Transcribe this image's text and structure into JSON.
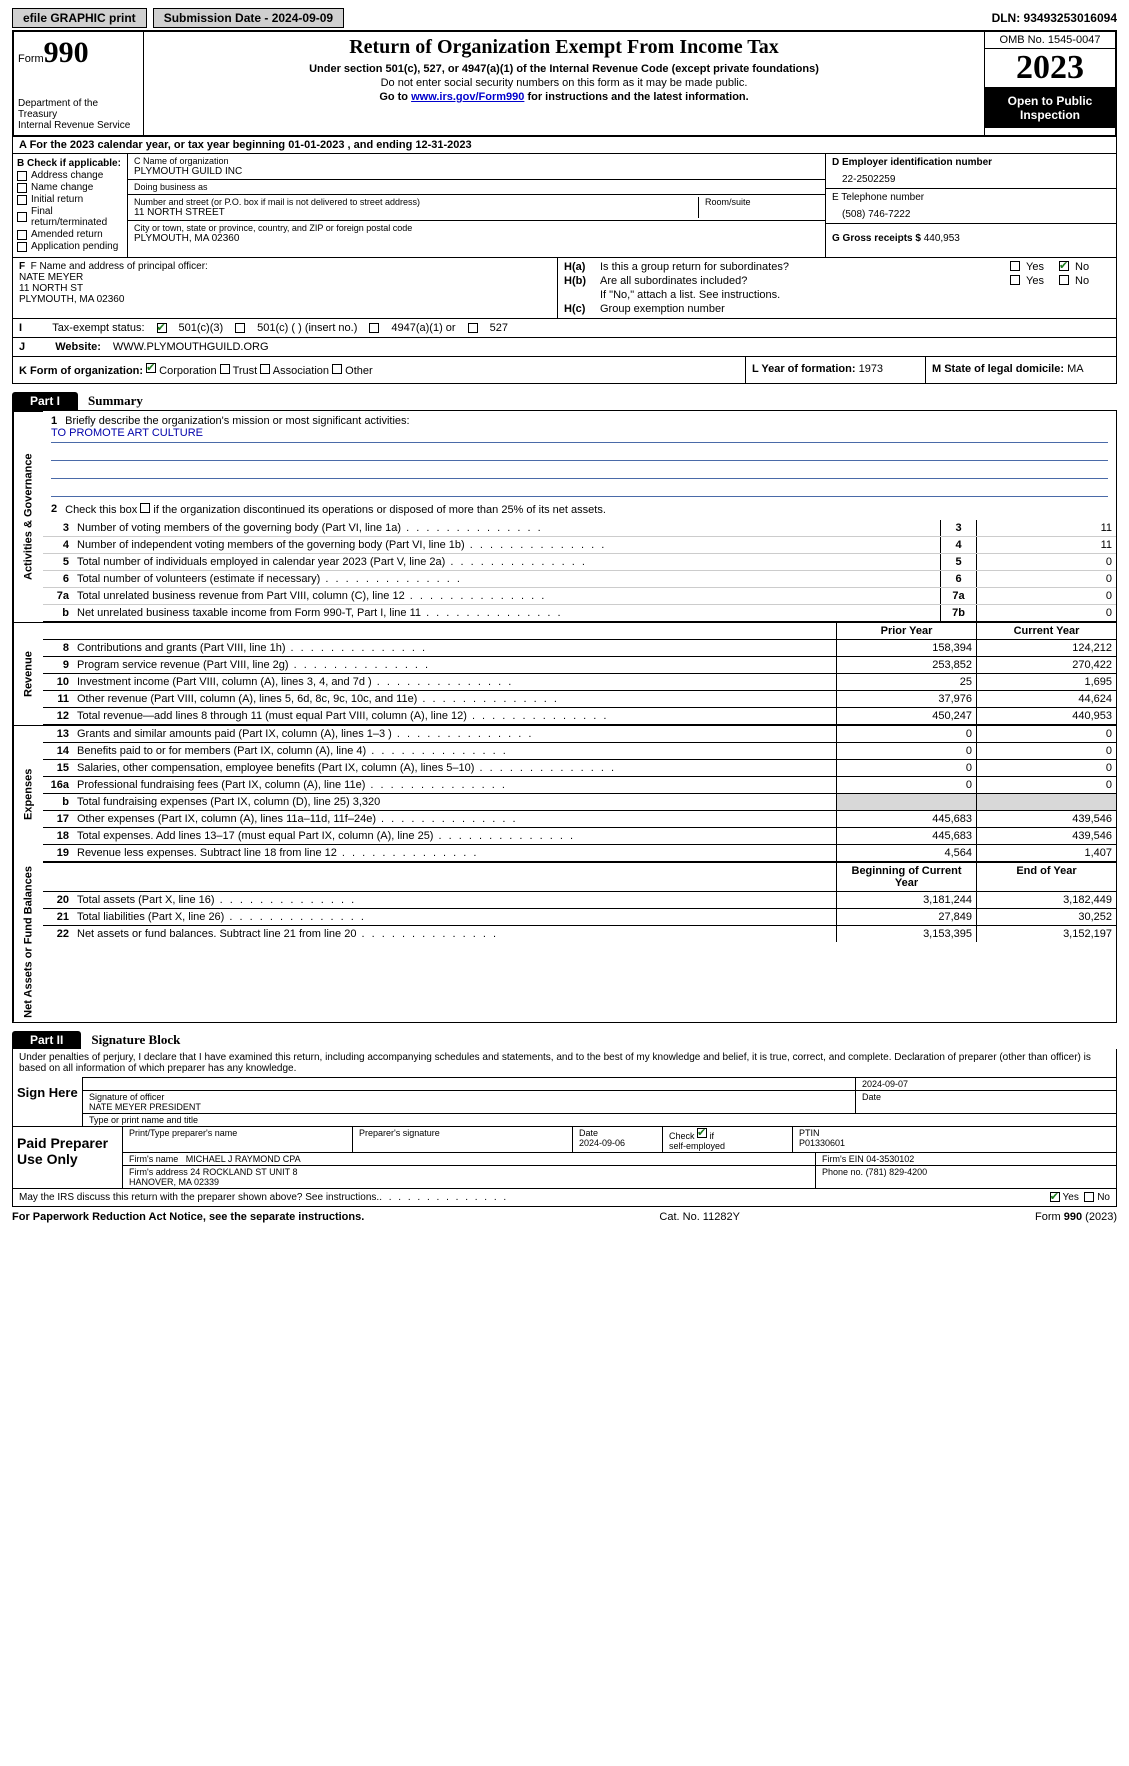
{
  "topbar": {
    "efile": "efile GRAPHIC print",
    "submission": "Submission Date - 2024-09-09",
    "dln": "DLN: 93493253016094"
  },
  "header": {
    "form_label": "Form",
    "form_no": "990",
    "dept": "Department of the Treasury\nInternal Revenue Service",
    "title": "Return of Organization Exempt From Income Tax",
    "sub1": "Under section 501(c), 527, or 4947(a)(1) of the Internal Revenue Code (except private foundations)",
    "sub2": "Do not enter social security numbers on this form as it may be made public.",
    "sub3_pre": "Go to ",
    "sub3_link": "www.irs.gov/Form990",
    "sub3_post": " for instructions and the latest information.",
    "omb": "OMB No. 1545-0047",
    "year": "2023",
    "open": "Open to Public Inspection"
  },
  "row_a": "A For the 2023 calendar year, or tax year beginning 01-01-2023   , and ending 12-31-2023",
  "col_b": {
    "label": "B Check if applicable:",
    "opts": [
      "Address change",
      "Name change",
      "Initial return",
      "Final return/terminated",
      "Amended return",
      "Application pending"
    ]
  },
  "col_c": {
    "name_lbl": "C Name of organization",
    "name": "PLYMOUTH GUILD INC",
    "dba_lbl": "Doing business as",
    "dba": "",
    "addr_lbl": "Number and street (or P.O. box if mail is not delivered to street address)",
    "addr": "11 NORTH STREET",
    "room_lbl": "Room/suite",
    "room": "",
    "city_lbl": "City or town, state or province, country, and ZIP or foreign postal code",
    "city": "PLYMOUTH, MA  02360"
  },
  "col_d": {
    "ein_lbl": "D Employer identification number",
    "ein": "22-2502259",
    "tel_lbl": "E Telephone number",
    "tel": "(508) 746-7222",
    "gross_lbl": "G Gross receipts $",
    "gross": "440,953"
  },
  "row_f": {
    "lbl": "F  Name and address of principal officer:",
    "name": "NATE MEYER",
    "addr1": "11 NORTH ST",
    "addr2": "PLYMOUTH, MA  02360"
  },
  "row_h": {
    "ha_lbl": "Is this a group return for subordinates?",
    "ha_yes": "Yes",
    "ha_no": "No",
    "ha_val": "No",
    "hb_lbl": "Are all subordinates included?",
    "hb_val": "",
    "hb_note": "If \"No,\" attach a list. See instructions.",
    "hc_lbl": "Group exemption number"
  },
  "row_i": {
    "lbl": "Tax-exempt status:",
    "o1": "501(c)(3)",
    "o2": "501(c) (  ) (insert no.)",
    "o3": "4947(a)(1) or",
    "o4": "527"
  },
  "row_j": {
    "lbl": "Website:",
    "val": "WWW.PLYMOUTHGUILD.ORG"
  },
  "row_k": {
    "lbl": "K Form of organization:",
    "o1": "Corporation",
    "o2": "Trust",
    "o3": "Association",
    "o4": "Other"
  },
  "row_l": {
    "lbl": "L Year of formation:",
    "val": "1973"
  },
  "row_m": {
    "lbl": "M State of legal domicile:",
    "val": "MA"
  },
  "part1": {
    "tab": "Part I",
    "title": "Summary"
  },
  "gov": {
    "label": "Activities & Governance",
    "line1_lbl": "Briefly describe the organization's mission or most significant activities:",
    "line1_val": "TO PROMOTE ART CULTURE",
    "line2": "Check this box    if the organization discontinued its operations or disposed of more than 25% of its net assets.",
    "rows": [
      {
        "n": "3",
        "d": "Number of voting members of the governing body (Part VI, line 1a)",
        "box": "3",
        "v": "11"
      },
      {
        "n": "4",
        "d": "Number of independent voting members of the governing body (Part VI, line 1b)",
        "box": "4",
        "v": "11"
      },
      {
        "n": "5",
        "d": "Total number of individuals employed in calendar year 2023 (Part V, line 2a)",
        "box": "5",
        "v": "0"
      },
      {
        "n": "6",
        "d": "Total number of volunteers (estimate if necessary)",
        "box": "6",
        "v": "0"
      },
      {
        "n": "7a",
        "d": "Total unrelated business revenue from Part VIII, column (C), line 12",
        "box": "7a",
        "v": "0"
      },
      {
        "n": "b",
        "d": "Net unrelated business taxable income from Form 990-T, Part I, line 11",
        "box": "7b",
        "v": "0"
      }
    ]
  },
  "rev": {
    "label": "Revenue",
    "hdr_prior": "Prior Year",
    "hdr_curr": "Current Year",
    "rows": [
      {
        "n": "8",
        "d": "Contributions and grants (Part VIII, line 1h)",
        "pv": "158,394",
        "cv": "124,212"
      },
      {
        "n": "9",
        "d": "Program service revenue (Part VIII, line 2g)",
        "pv": "253,852",
        "cv": "270,422"
      },
      {
        "n": "10",
        "d": "Investment income (Part VIII, column (A), lines 3, 4, and 7d )",
        "pv": "25",
        "cv": "1,695"
      },
      {
        "n": "11",
        "d": "Other revenue (Part VIII, column (A), lines 5, 6d, 8c, 9c, 10c, and 11e)",
        "pv": "37,976",
        "cv": "44,624"
      },
      {
        "n": "12",
        "d": "Total revenue—add lines 8 through 11 (must equal Part VIII, column (A), line 12)",
        "pv": "450,247",
        "cv": "440,953"
      }
    ]
  },
  "exp": {
    "label": "Expenses",
    "rows": [
      {
        "n": "13",
        "d": "Grants and similar amounts paid (Part IX, column (A), lines 1–3 )",
        "pv": "0",
        "cv": "0"
      },
      {
        "n": "14",
        "d": "Benefits paid to or for members (Part IX, column (A), line 4)",
        "pv": "0",
        "cv": "0"
      },
      {
        "n": "15",
        "d": "Salaries, other compensation, employee benefits (Part IX, column (A), lines 5–10)",
        "pv": "0",
        "cv": "0"
      },
      {
        "n": "16a",
        "d": "Professional fundraising fees (Part IX, column (A), line 11e)",
        "pv": "0",
        "cv": "0"
      },
      {
        "n": "b",
        "d": "Total fundraising expenses (Part IX, column (D), line 25) 3,320",
        "pv": "",
        "cv": "",
        "gray": true
      },
      {
        "n": "17",
        "d": "Other expenses (Part IX, column (A), lines 11a–11d, 11f–24e)",
        "pv": "445,683",
        "cv": "439,546"
      },
      {
        "n": "18",
        "d": "Total expenses. Add lines 13–17 (must equal Part IX, column (A), line 25)",
        "pv": "445,683",
        "cv": "439,546"
      },
      {
        "n": "19",
        "d": "Revenue less expenses. Subtract line 18 from line 12",
        "pv": "4,564",
        "cv": "1,407"
      }
    ]
  },
  "net": {
    "label": "Net Assets or Fund Balances",
    "hdr_prior": "Beginning of Current Year",
    "hdr_curr": "End of Year",
    "rows": [
      {
        "n": "20",
        "d": "Total assets (Part X, line 16)",
        "pv": "3,181,244",
        "cv": "3,182,449"
      },
      {
        "n": "21",
        "d": "Total liabilities (Part X, line 26)",
        "pv": "27,849",
        "cv": "30,252"
      },
      {
        "n": "22",
        "d": "Net assets or fund balances. Subtract line 21 from line 20",
        "pv": "3,153,395",
        "cv": "3,152,197"
      }
    ]
  },
  "part2": {
    "tab": "Part II",
    "title": "Signature Block"
  },
  "sig": {
    "penalty": "Under penalties of perjury, I declare that I have examined this return, including accompanying schedules and statements, and to the best of my knowledge and belief, it is true, correct, and complete. Declaration of preparer (other than officer) is based on all information of which preparer has any knowledge.",
    "signhere": "Sign Here",
    "sig_date": "2024-09-07",
    "sig_officer_lbl": "Signature of officer",
    "sig_officer": "NATE MEYER  PRESIDENT",
    "sig_type_lbl": "Type or print name and title",
    "date_lbl": "Date",
    "paid": "Paid Preparer Use Only",
    "prep_name_lbl": "Print/Type preparer's name",
    "prep_name": "",
    "prep_sig_lbl": "Preparer's signature",
    "prep_date_lbl": "Date",
    "prep_date": "2024-09-06",
    "self_lbl": "Check         if self-employed",
    "self_checked": true,
    "ptin_lbl": "PTIN",
    "ptin": "P01330601",
    "firm_name_lbl": "Firm's name",
    "firm_name": "MICHAEL J RAYMOND CPA",
    "firm_ein_lbl": "Firm's EIN",
    "firm_ein": "04-3530102",
    "firm_addr_lbl": "Firm's address",
    "firm_addr": "24 ROCKLAND ST UNIT 8\nHANOVER, MA  02339",
    "phone_lbl": "Phone no.",
    "phone": "(781) 829-4200",
    "discuss": "May the IRS discuss this return with the preparer shown above? See instructions.",
    "discuss_yes": "Yes",
    "discuss_no": "No"
  },
  "footer": {
    "left": "For Paperwork Reduction Act Notice, see the separate instructions.",
    "mid": "Cat. No. 11282Y",
    "right": "Form 990 (2023)"
  },
  "colors": {
    "rule": "#000000",
    "link": "#0000cc",
    "check": "#1a7a1a",
    "gray": "#d8d8d8",
    "uline": "#4a6aa8"
  }
}
